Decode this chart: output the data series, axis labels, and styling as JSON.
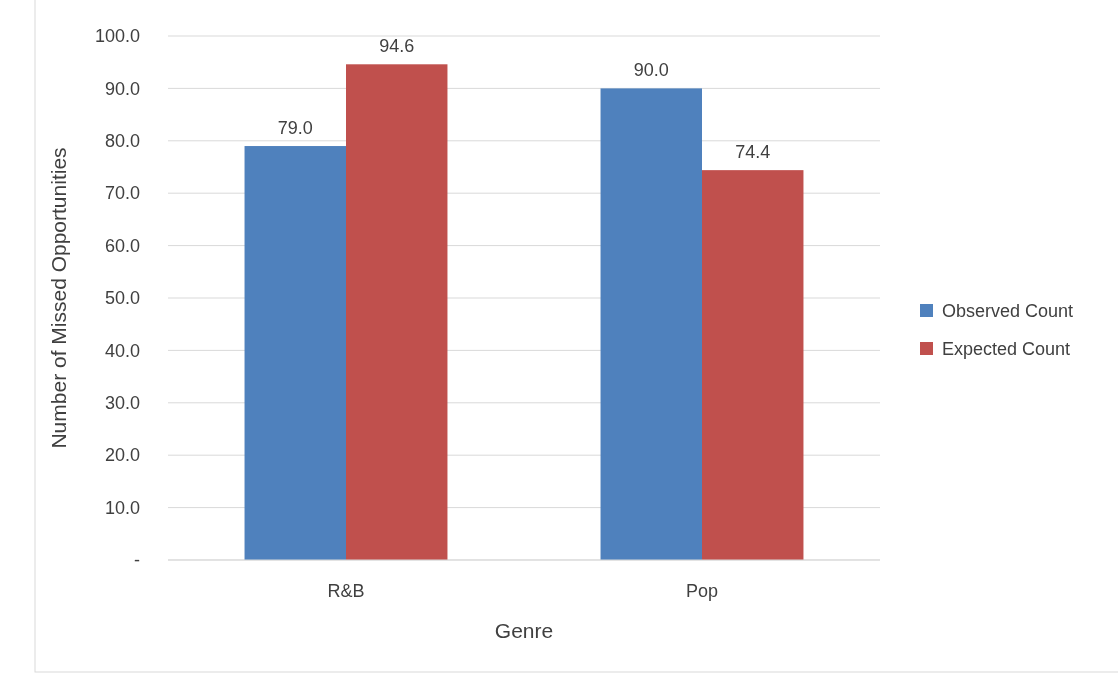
{
  "chart_data": {
    "type": "bar",
    "xlabel": "Genre",
    "ylabel": "Number of Missed Opportunities",
    "categories": [
      "R&B",
      "Pop"
    ],
    "series": [
      {
        "name": "Observed Count",
        "color": "#4f81bd",
        "values": [
          79.0,
          90.0
        ],
        "value_labels": [
          "79.0",
          "90.0"
        ]
      },
      {
        "name": "Expected Count",
        "color": "#c0504d",
        "values": [
          94.6,
          74.4
        ],
        "value_labels": [
          "94.6",
          "74.4"
        ]
      }
    ],
    "ylim": [
      0,
      100
    ],
    "yticks": [
      {
        "value": 0,
        "label": "-"
      },
      {
        "value": 10,
        "label": "10.0"
      },
      {
        "value": 20,
        "label": "20.0"
      },
      {
        "value": 30,
        "label": "30.0"
      },
      {
        "value": 40,
        "label": "40.0"
      },
      {
        "value": 50,
        "label": "50.0"
      },
      {
        "value": 60,
        "label": "60.0"
      },
      {
        "value": 70,
        "label": "70.0"
      },
      {
        "value": 80,
        "label": "80.0"
      },
      {
        "value": 90,
        "label": "90.0"
      },
      {
        "value": 100,
        "label": "100.0"
      }
    ],
    "grid": "y",
    "legend": "right"
  }
}
